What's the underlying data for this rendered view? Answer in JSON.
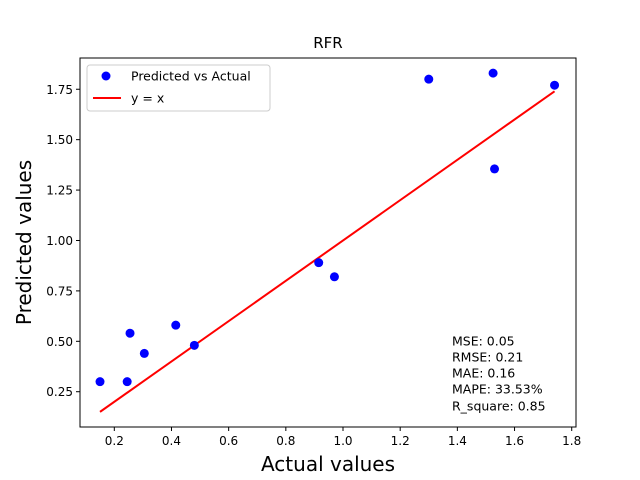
{
  "chart_data": {
    "type": "scatter",
    "title": "RFR",
    "xlabel": "Actual values",
    "ylabel": "Predicted values",
    "xlim": [
      0.08,
      1.815
    ],
    "ylim": [
      0.075,
      1.905
    ],
    "xticks": [
      "0.2",
      "0.4",
      "0.6",
      "0.8",
      "1.0",
      "1.2",
      "1.4",
      "1.6",
      "1.8"
    ],
    "yticks": [
      "0.25",
      "0.50",
      "0.75",
      "1.00",
      "1.25",
      "1.50",
      "1.75"
    ],
    "grid": false,
    "legend_position": "top-left",
    "series": [
      {
        "name": "Predicted vs Actual",
        "color": "#0000ff",
        "marker": "circle",
        "x": [
          0.15,
          0.245,
          0.255,
          0.305,
          0.415,
          0.48,
          0.915,
          0.97,
          1.3,
          1.525,
          1.53,
          1.74
        ],
        "y": [
          0.3,
          0.3,
          0.54,
          0.44,
          0.58,
          0.48,
          0.89,
          0.82,
          1.8,
          1.83,
          1.355,
          1.77
        ]
      },
      {
        "name": "y = x",
        "color": "#ff0000",
        "marker": "line",
        "x": [
          0.15,
          1.74
        ],
        "y": [
          0.15,
          1.74
        ]
      }
    ],
    "annotations": [
      "MSE: 0.05",
      "RMSE: 0.21",
      "MAE: 0.16",
      "MAPE: 33.53%",
      "R_square: 0.85"
    ]
  }
}
